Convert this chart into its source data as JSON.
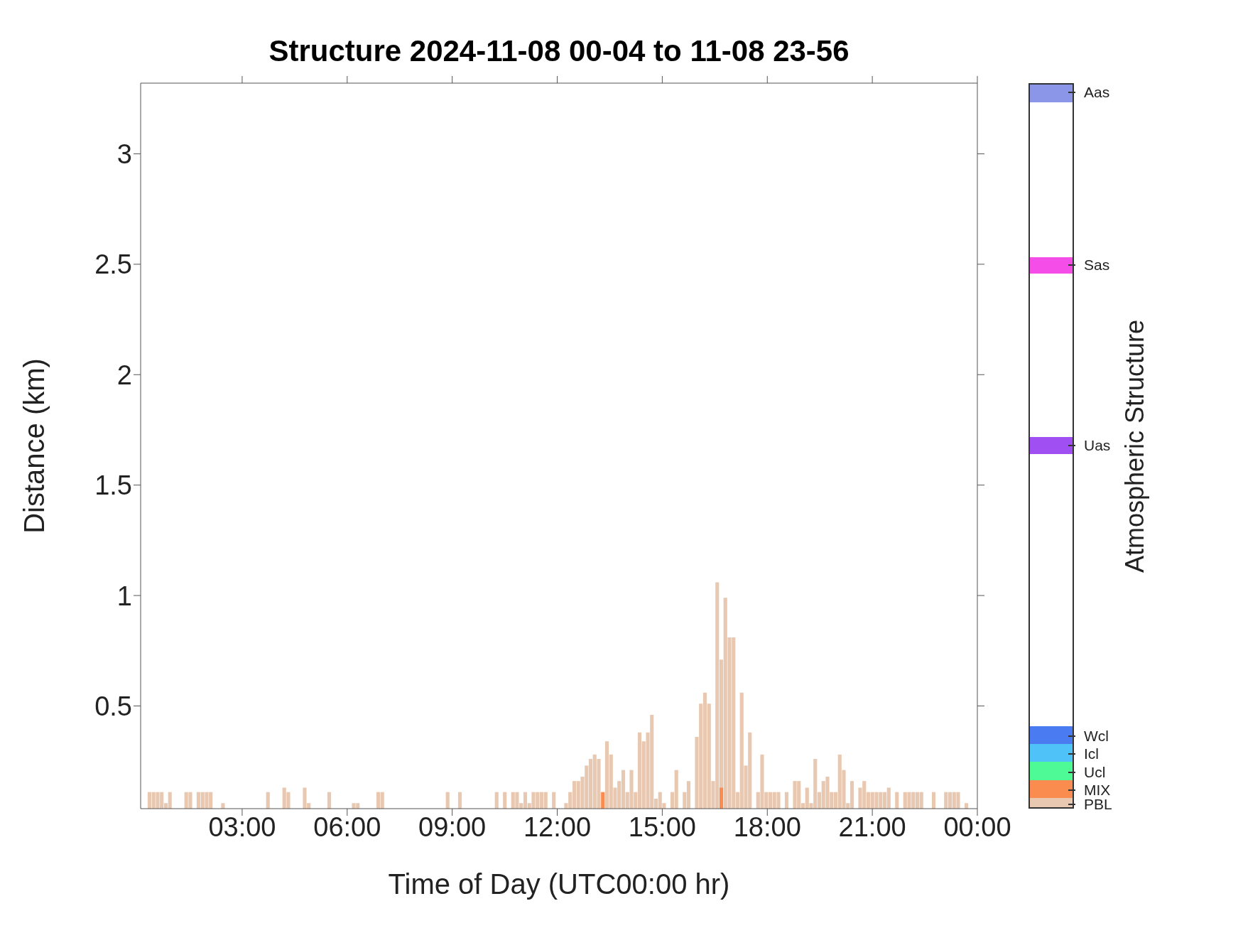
{
  "chart_data": {
    "type": "bar",
    "title": "Structure 2024-11-08 00-04 to 11-08 23-56",
    "xlabel": "Time of Day (UTC00:00 hr)",
    "ylabel": "Distance (km)",
    "legend_title": "Atmospheric Structure",
    "legend": "right",
    "xlim": [
      0.1,
      24
    ],
    "xticks": [
      {
        "value": 3,
        "label": "03:00"
      },
      {
        "value": 6,
        "label": "06:00"
      },
      {
        "value": 9,
        "label": "09:00"
      },
      {
        "value": 12,
        "label": "12:00"
      },
      {
        "value": 15,
        "label": "15:00"
      },
      {
        "value": 18,
        "label": "18:00"
      },
      {
        "value": 21,
        "label": "21:00"
      },
      {
        "value": 24,
        "label": "00:00"
      }
    ],
    "ylim": [
      0.035,
      3.32
    ],
    "yticks": [
      0.5,
      1,
      1.5,
      2,
      2.5,
      3
    ],
    "series": [
      {
        "name": "MIX",
        "color": "#fa8c50",
        "x": [
          13.308,
          16.692
        ],
        "values": [
          0.11,
          0.13
        ]
      },
      {
        "name": "PBL",
        "color": "#e8c8b0",
        "x": [
          0.358,
          0.475,
          0.592,
          0.708,
          0.825,
          0.942,
          1.408,
          1.525,
          1.758,
          1.875,
          1.992,
          2.108,
          2.458,
          3.742,
          4.208,
          4.325,
          4.792,
          4.908,
          5.492,
          6.192,
          6.308,
          6.892,
          7.008,
          8.875,
          9.225,
          10.275,
          10.508,
          10.742,
          10.858,
          10.975,
          11.092,
          11.208,
          11.325,
          11.442,
          11.558,
          11.675,
          11.908,
          12.258,
          12.375,
          12.492,
          12.608,
          12.725,
          12.842,
          12.958,
          13.075,
          13.192,
          13.425,
          13.542,
          13.658,
          13.775,
          13.892,
          14.008,
          14.125,
          14.242,
          14.358,
          14.475,
          14.592,
          14.708,
          14.825,
          14.942,
          15.058,
          15.292,
          15.408,
          15.642,
          15.758,
          15.992,
          16.108,
          16.225,
          16.342,
          16.458,
          16.575,
          16.692,
          16.808,
          16.925,
          17.042,
          17.158,
          17.275,
          17.392,
          17.508,
          17.742,
          17.858,
          17.975,
          18.092,
          18.208,
          18.325,
          18.558,
          18.792,
          18.908,
          19.025,
          19.142,
          19.258,
          19.375,
          19.492,
          19.608,
          19.725,
          19.842,
          19.958,
          20.075,
          20.192,
          20.308,
          20.425,
          20.658,
          20.775,
          20.892,
          21.008,
          21.125,
          21.242,
          21.358,
          21.475,
          21.708,
          21.942,
          22.058,
          22.175,
          22.292,
          22.408,
          22.758,
          23.108,
          23.225,
          23.342,
          23.458,
          23.692
        ],
        "values": [
          0.11,
          0.11,
          0.11,
          0.11,
          0.06,
          0.11,
          0.11,
          0.11,
          0.11,
          0.11,
          0.11,
          0.11,
          0.06,
          0.11,
          0.13,
          0.11,
          0.13,
          0.06,
          0.11,
          0.06,
          0.06,
          0.11,
          0.11,
          0.11,
          0.11,
          0.11,
          0.11,
          0.11,
          0.11,
          0.06,
          0.11,
          0.06,
          0.11,
          0.11,
          0.11,
          0.11,
          0.11,
          0.06,
          0.11,
          0.16,
          0.16,
          0.18,
          0.23,
          0.26,
          0.28,
          0.26,
          0.34,
          0.28,
          0.13,
          0.16,
          0.21,
          0.11,
          0.21,
          0.11,
          0.38,
          0.34,
          0.38,
          0.46,
          0.08,
          0.11,
          0.06,
          0.11,
          0.21,
          0.11,
          0.16,
          0.36,
          0.51,
          0.56,
          0.51,
          0.16,
          1.06,
          0.71,
          0.99,
          0.81,
          0.81,
          0.11,
          0.56,
          0.23,
          0.38,
          0.11,
          0.28,
          0.11,
          0.11,
          0.11,
          0.11,
          0.11,
          0.16,
          0.16,
          0.06,
          0.13,
          0.06,
          0.26,
          0.11,
          0.16,
          0.18,
          0.11,
          0.11,
          0.28,
          0.21,
          0.06,
          0.16,
          0.13,
          0.16,
          0.11,
          0.11,
          0.11,
          0.11,
          0.11,
          0.13,
          0.11,
          0.11,
          0.11,
          0.11,
          0.11,
          0.11,
          0.11,
          0.11,
          0.11,
          0.11,
          0.11,
          0.06
        ]
      },
      {
        "name": "Ucl",
        "color": "#4dfa96"
      },
      {
        "name": "Icl",
        "color": "#4fc3f7"
      },
      {
        "name": "Wcl",
        "color": "#4b7bf0"
      },
      {
        "name": "Uas",
        "color": "#a04ff2"
      },
      {
        "name": "Sas",
        "color": "#f54ee8"
      },
      {
        "name": "Aas",
        "color": "#8c96e8"
      }
    ]
  }
}
